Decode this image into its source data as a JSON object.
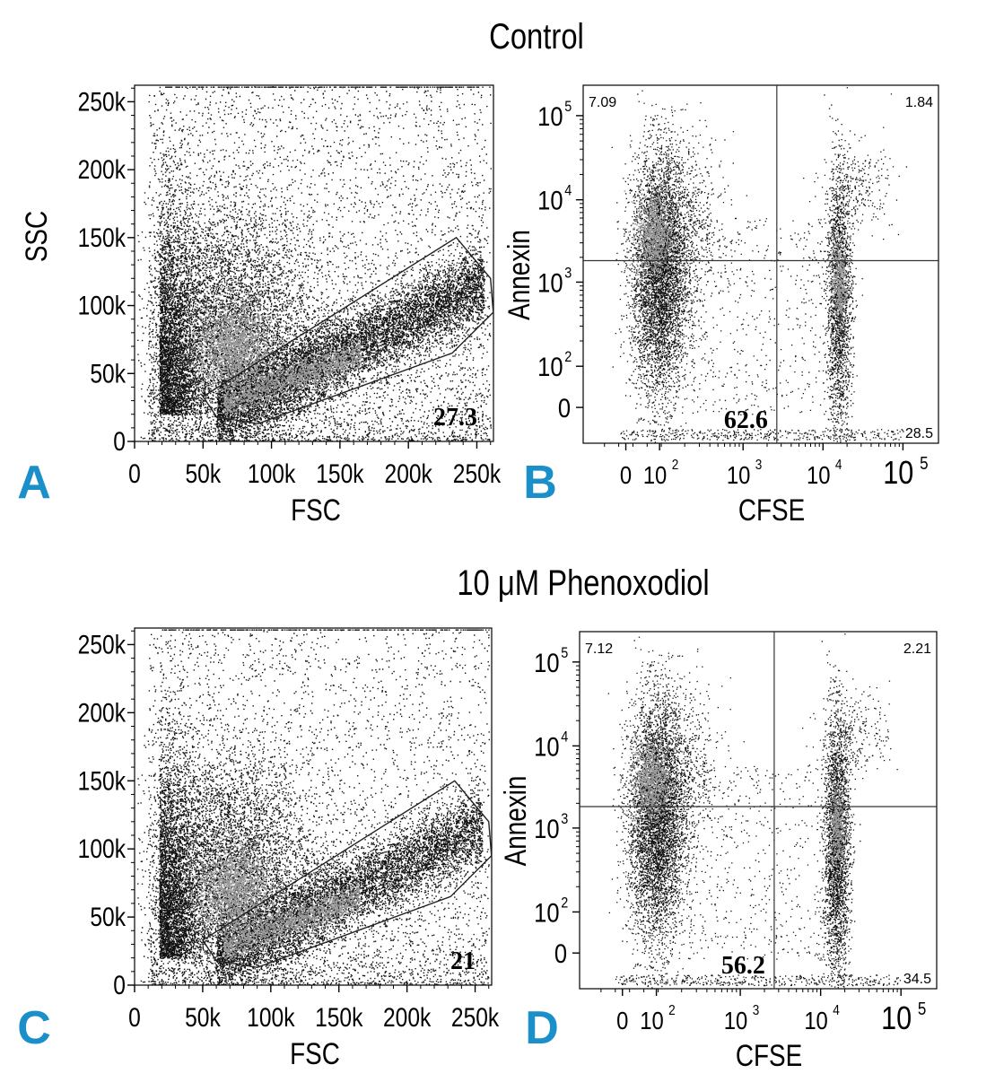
{
  "figure": {
    "title_top": "Control",
    "title_bottom": "10 μM Phenoxodiol",
    "panel_letter_color": "#1a8fc9",
    "gate_color": "#222222",
    "dot_color": "#111111",
    "dense_color": "#9a9a9a"
  },
  "chart_data": [
    {
      "id": "A",
      "type": "scatter",
      "panel_letter": "A",
      "xlabel": "FSC",
      "ylabel": "SSC",
      "xticks": [
        "0",
        "50k",
        "100k",
        "150k",
        "200k",
        "250k"
      ],
      "yticks": [
        "0",
        "50k",
        "100k",
        "150k",
        "200k",
        "250k"
      ],
      "xlim": [
        0,
        262144
      ],
      "ylim": [
        0,
        262144
      ],
      "gate_percent": "27.3",
      "population": "control"
    },
    {
      "id": "B",
      "type": "scatter",
      "panel_letter": "B",
      "xlabel": "CFSE",
      "ylabel": "Annexin",
      "xticks": [
        "0",
        "10",
        "10",
        "10",
        "10"
      ],
      "xtick_exp": [
        "",
        "2",
        "3",
        "4",
        "5"
      ],
      "yticks": [
        "0",
        "10",
        "10",
        "10",
        "10"
      ],
      "ytick_exp": [
        "",
        "2",
        "3",
        "4",
        "5"
      ],
      "scale": "logicle",
      "quadrants": {
        "upper_left": "7.09",
        "upper_right": "1.84",
        "lower_left": "62.6",
        "lower_right": "28.5"
      },
      "population": "control"
    },
    {
      "id": "C",
      "type": "scatter",
      "panel_letter": "C",
      "xlabel": "FSC",
      "ylabel": "",
      "xticks": [
        "0",
        "50k",
        "100k",
        "150k",
        "200k",
        "250k"
      ],
      "yticks": [
        "0",
        "50k",
        "100k",
        "150k",
        "200k",
        "250k"
      ],
      "xlim": [
        0,
        262144
      ],
      "ylim": [
        0,
        262144
      ],
      "gate_percent": "21",
      "population": "phenoxodiol"
    },
    {
      "id": "D",
      "type": "scatter",
      "panel_letter": "D",
      "xlabel": "CFSE",
      "ylabel": "Annexin",
      "xticks": [
        "0",
        "10",
        "10",
        "10",
        "10"
      ],
      "xtick_exp": [
        "",
        "2",
        "3",
        "4",
        "5"
      ],
      "yticks": [
        "0",
        "10",
        "10",
        "10",
        "10"
      ],
      "ytick_exp": [
        "",
        "2",
        "3",
        "4",
        "5"
      ],
      "scale": "logicle",
      "quadrants": {
        "upper_left": "7.12",
        "upper_right": "2.21",
        "lower_left": "56.2",
        "lower_right": "34.5"
      },
      "population": "phenoxodiol"
    }
  ]
}
